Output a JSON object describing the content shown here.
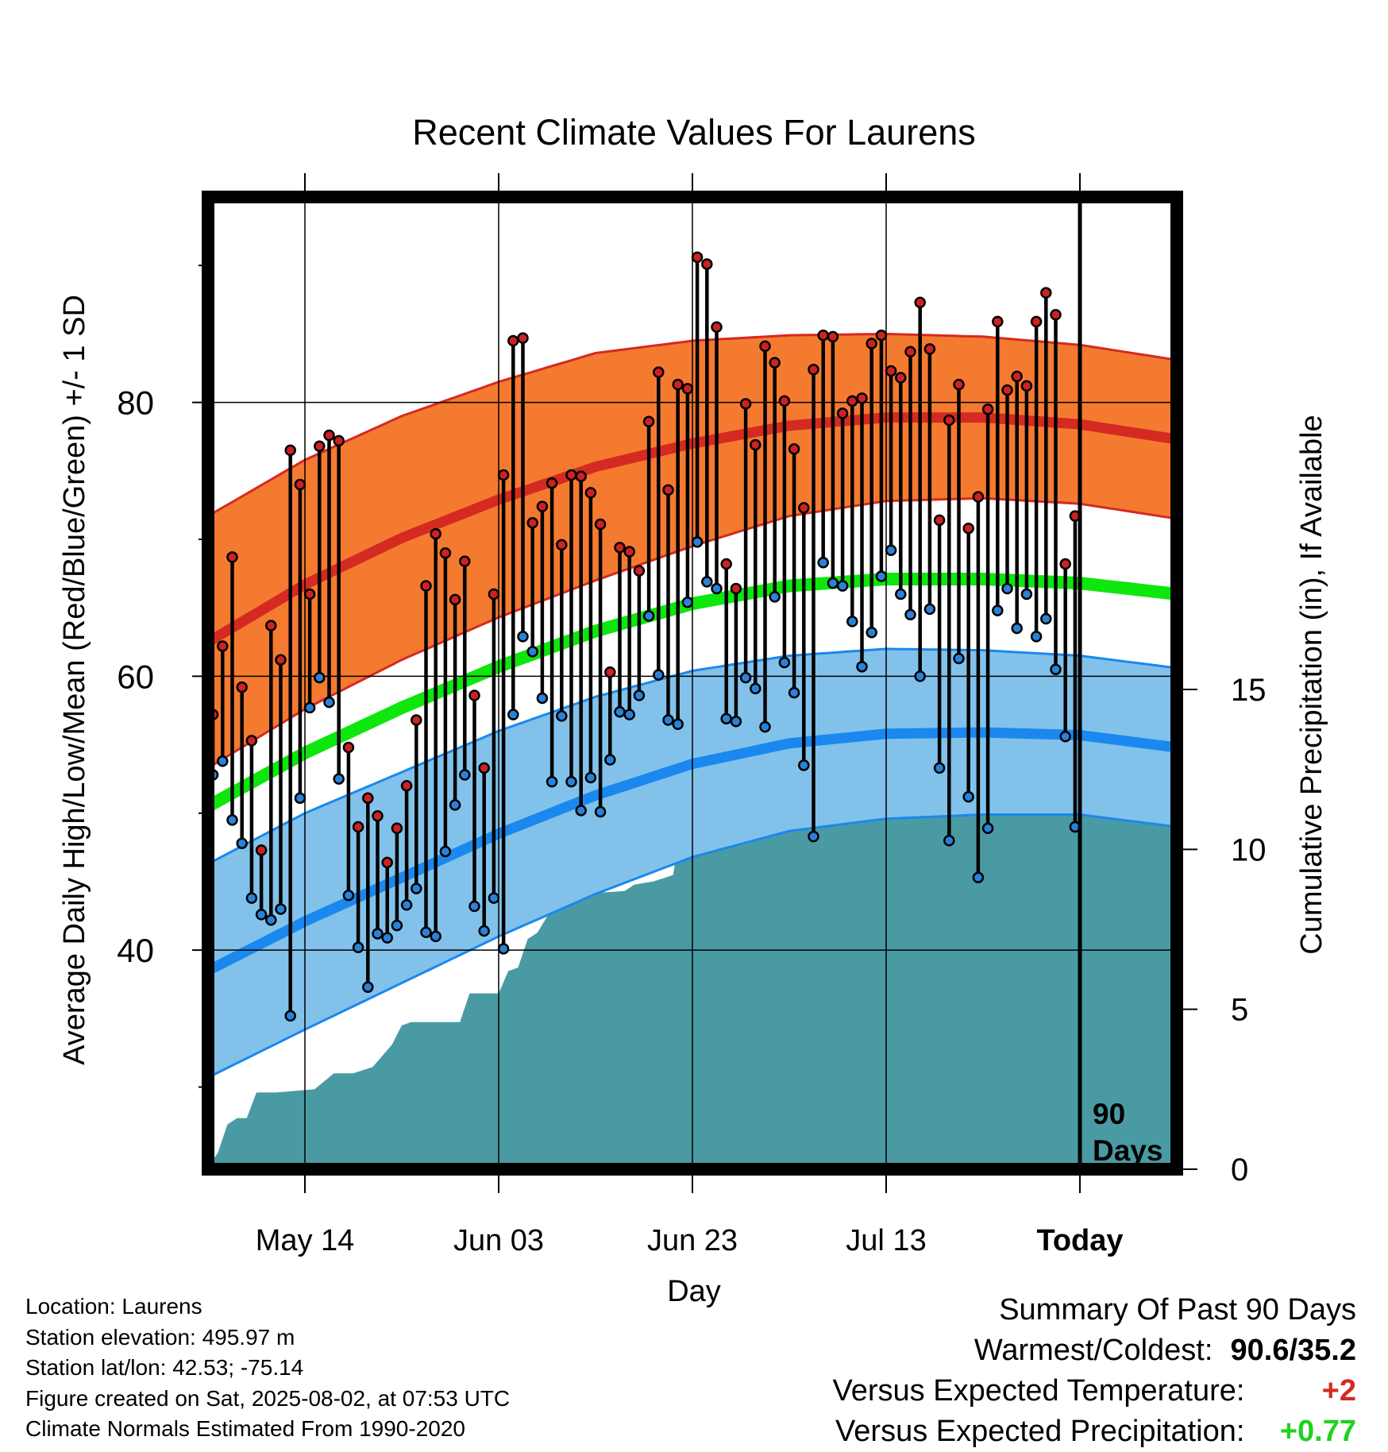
{
  "chart_data": {
    "type": "line",
    "title": "Recent Climate Values For Laurens",
    "xlabel": "Day",
    "ylabel_left": "Average Daily High/Low/Mean (Red/Blue/Green) +/- 1 SD",
    "ylabel_right": "Cumulative Precipitation (in), If Available",
    "x_tick_labels": [
      "May 14",
      "Jun 03",
      "Jun 23",
      "Jul 13",
      "Today"
    ],
    "x_tick_days": [
      10,
      30,
      50,
      70,
      90
    ],
    "xlim": [
      0,
      100
    ],
    "ylim_left": [
      24,
      95
    ],
    "ylim_right": [
      0,
      30.4
    ],
    "y_left_ticks": [
      40,
      60,
      80
    ],
    "y_left_minor_ticks": [
      30,
      50,
      70,
      90
    ],
    "y_right_ticks": [
      0,
      5,
      10,
      15
    ],
    "window_label": "90 Days",
    "today_day": 90,
    "grid": true,
    "colors": {
      "high_band": "#f47a30",
      "high_line": "#d42a22",
      "low_band": "#82c2ea",
      "low_line": "#1a88ee",
      "mean_line": "#0ee60e",
      "precip": "#4a9aa3",
      "high_dot": "#cc2222",
      "low_dot": "#2a82d8"
    },
    "normals": {
      "days": [
        0,
        10,
        20,
        30,
        40,
        50,
        60,
        70,
        80,
        90,
        100
      ],
      "normal_high": [
        62.5,
        66.7,
        70.1,
        72.9,
        75.3,
        77.0,
        78.3,
        78.9,
        78.9,
        78.4,
        77.3
      ],
      "high_sd": [
        9.2,
        9.1,
        8.9,
        8.6,
        8.3,
        7.5,
        6.6,
        6.1,
        5.9,
        5.8,
        5.8
      ],
      "normal_mean": [
        50.5,
        54.4,
        57.7,
        60.7,
        63.3,
        65.3,
        66.6,
        67.1,
        67.1,
        66.8,
        66.0
      ],
      "normal_low": [
        38.5,
        42.1,
        45.3,
        48.5,
        51.3,
        53.6,
        55.1,
        55.8,
        55.9,
        55.7,
        54.8
      ],
      "low_sd": [
        7.8,
        7.9,
        7.7,
        7.5,
        7.2,
        6.8,
        6.4,
        6.2,
        6.0,
        5.8,
        5.8
      ]
    },
    "observed": {
      "days": [
        0,
        1,
        2,
        3,
        4,
        5,
        6,
        7,
        8,
        9,
        10,
        11,
        12,
        13,
        14,
        15,
        16,
        17,
        18,
        19,
        20,
        21,
        22,
        23,
        24,
        25,
        26,
        27,
        28,
        29,
        30,
        31,
        32,
        33,
        34,
        35,
        36,
        37,
        38,
        39,
        40,
        41,
        42,
        43,
        44,
        45,
        46,
        47,
        48,
        49,
        50,
        51,
        52,
        53,
        54,
        55,
        56,
        57,
        58,
        59,
        60,
        61,
        62,
        63,
        64,
        65,
        66,
        67,
        68,
        69,
        70,
        71,
        72,
        73,
        74,
        75,
        76,
        77,
        78,
        79,
        80,
        81,
        82,
        83,
        84,
        85,
        86,
        87,
        88,
        89
      ],
      "high": [
        57.2,
        62.2,
        68.7,
        59.2,
        55.3,
        47.3,
        63.7,
        61.2,
        76.5,
        74.0,
        66.0,
        76.8,
        77.6,
        77.2,
        54.8,
        49.0,
        51.1,
        49.8,
        46.4,
        48.9,
        52.0,
        56.8,
        66.6,
        70.4,
        69.0,
        65.6,
        68.4,
        58.6,
        53.3,
        66.0,
        74.7,
        84.5,
        84.7,
        71.2,
        72.4,
        74.1,
        69.6,
        74.7,
        74.6,
        73.4,
        71.1,
        60.3,
        69.4,
        69.1,
        67.7,
        78.6,
        82.2,
        73.6,
        81.3,
        81.0,
        90.6,
        90.1,
        85.5,
        68.2,
        66.4,
        79.9,
        76.9,
        84.1,
        82.9,
        80.1,
        76.6,
        72.3,
        82.4,
        84.9,
        84.8,
        79.2,
        80.1,
        80.3,
        84.3,
        84.9,
        82.3,
        81.8,
        83.7,
        87.3,
        83.9,
        71.4,
        78.7,
        81.3,
        70.8,
        73.1,
        79.5,
        85.9,
        80.9,
        81.9,
        81.2,
        85.9,
        88.0,
        86.4,
        68.2,
        71.7
      ],
      "low": [
        52.8,
        53.8,
        49.5,
        47.8,
        43.8,
        42.6,
        42.2,
        43.0,
        35.2,
        51.1,
        57.7,
        59.9,
        58.1,
        52.5,
        44.0,
        40.2,
        37.3,
        41.2,
        40.9,
        41.8,
        43.3,
        44.5,
        41.3,
        41.0,
        47.2,
        50.6,
        52.8,
        43.2,
        41.4,
        43.8,
        40.1,
        57.2,
        62.9,
        61.8,
        58.4,
        52.3,
        57.1,
        52.3,
        50.2,
        52.6,
        50.1,
        53.9,
        57.4,
        57.2,
        58.6,
        64.4,
        60.1,
        56.8,
        56.5,
        65.4,
        69.8,
        66.9,
        66.4,
        56.9,
        56.7,
        59.9,
        59.1,
        56.3,
        65.8,
        61.0,
        58.8,
        53.5,
        48.3,
        68.3,
        66.8,
        66.6,
        64.0,
        60.7,
        63.2,
        67.3,
        69.2,
        66.0,
        64.5,
        60.0,
        64.9,
        53.3,
        48.0,
        61.3,
        51.2,
        45.3,
        48.9,
        64.8,
        66.4,
        63.5,
        66.0,
        62.9,
        64.2,
        60.5,
        55.6,
        49.0
      ]
    },
    "precip": {
      "days": [
        0,
        1,
        2,
        3,
        4,
        5,
        7,
        11,
        13,
        15,
        17,
        19,
        20,
        21,
        26,
        27,
        30,
        31,
        32,
        33,
        34,
        35,
        36,
        38,
        43,
        44,
        46,
        48,
        49,
        50,
        53,
        56,
        58,
        61,
        66,
        68,
        70,
        71,
        80,
        81,
        84,
        86,
        87,
        88,
        100
      ],
      "values": [
        0.1,
        0.5,
        1.4,
        1.6,
        1.6,
        2.4,
        2.4,
        2.5,
        3.0,
        3.0,
        3.2,
        3.9,
        4.5,
        4.6,
        4.6,
        5.5,
        5.5,
        6.2,
        6.3,
        7.2,
        7.4,
        7.9,
        8.6,
        8.6,
        8.7,
        8.9,
        9.0,
        9.2,
        11.0,
        11.0,
        11.4,
        11.4,
        11.7,
        11.8,
        11.8,
        12.1,
        12.8,
        13.0,
        13.0,
        13.1,
        13.3,
        13.3,
        13.5,
        13.8,
        13.8
      ]
    }
  },
  "footer": {
    "location": "Location: Laurens",
    "elevation": "Station elevation: 495.97 m",
    "latlon": "Station lat/lon: 42.53; -75.14",
    "created": "Figure created on Sat, 2025-08-02, at 07:53 UTC",
    "normals_period": "Climate Normals Estimated From 1990-2020"
  },
  "summary": {
    "heading": "Summary Of Past 90 Days",
    "warmest_coldest_label": "Warmest/Coldest:",
    "warmest_coldest_value": "90.6/35.2",
    "temp_label": "Versus Expected Temperature:",
    "temp_value": "+2",
    "temp_color": "#d42a22",
    "precip_label": "Versus Expected Precipitation:",
    "precip_value": "+0.77",
    "precip_color": "#1ed21e"
  }
}
